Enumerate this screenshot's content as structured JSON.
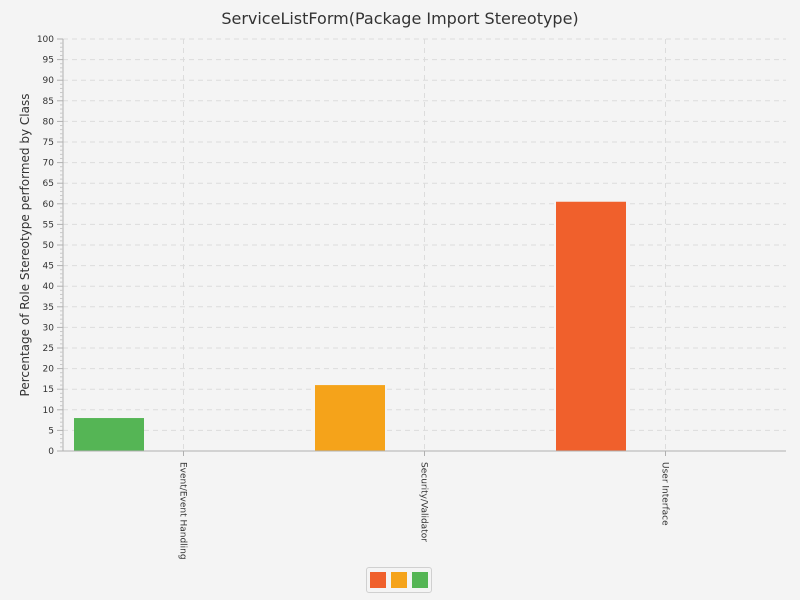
{
  "chart_data": {
    "type": "bar",
    "title": "ServiceListForm(Package Import Stereotype)",
    "xlabel": "",
    "ylabel": "Percentage of Role Stereotype performed by Class",
    "ylim": [
      0,
      100
    ],
    "y_ticks": [
      0,
      5,
      10,
      15,
      20,
      25,
      30,
      35,
      40,
      45,
      50,
      55,
      60,
      65,
      70,
      75,
      80,
      85,
      90,
      95,
      100
    ],
    "categories": [
      "Event/Event Handling",
      "Security/Validator",
      "User Interface"
    ],
    "series": [
      {
        "color": "#55b555",
        "values": [
          8,
          0,
          0
        ]
      },
      {
        "color": "#f5a31a",
        "values": [
          0,
          16,
          0
        ]
      },
      {
        "color": "#f0602c",
        "values": [
          0,
          0,
          60.5
        ]
      }
    ],
    "legend_colors": [
      "#f0602c",
      "#f5a31a",
      "#55b555"
    ],
    "grid": true,
    "legend_position": "bottom"
  }
}
